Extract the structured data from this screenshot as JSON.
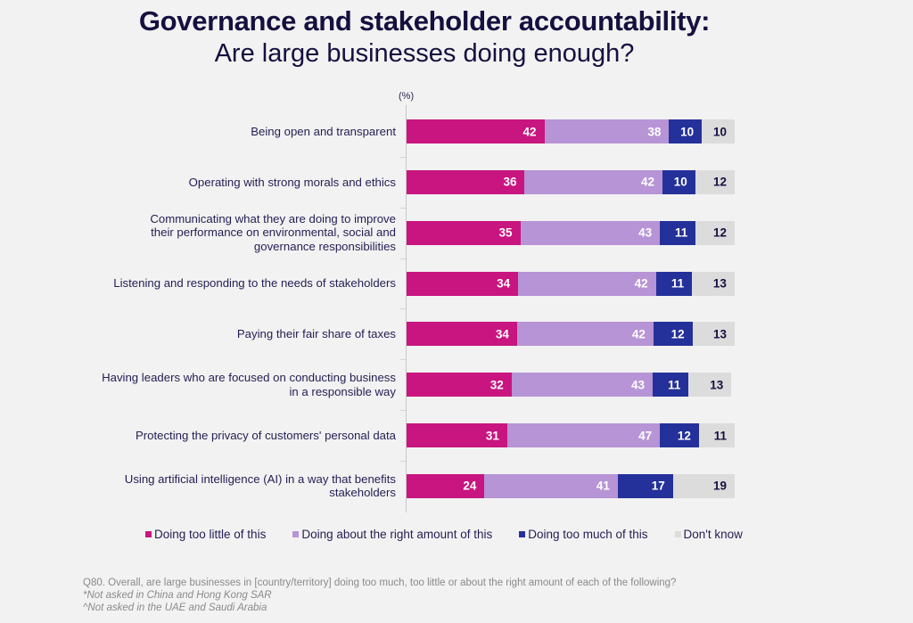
{
  "header": {
    "title": "Governance and stakeholder accountability:",
    "subtitle": "Are large businesses doing enough?"
  },
  "colors": {
    "too_little": "#c8157f",
    "right_amount": "#b794d6",
    "too_much": "#25319a",
    "dont_know": "#dcdcdc"
  },
  "chart_data": {
    "type": "bar",
    "orientation": "horizontal",
    "stacked": true,
    "title": "Governance and stakeholder accountability: Are large businesses doing enough?",
    "unit_label": "(%)",
    "xlim": [
      0,
      100
    ],
    "legend_position": "bottom",
    "categories": [
      "Being open and transparent",
      "Operating with strong morals and ethics",
      "Communicating what they are doing to improve their performance on environmental, social and governance responsibilities",
      "Listening and responding to the needs of stakeholders",
      "Paying their fair share of taxes",
      "Having leaders who are focused on conducting business in a responsible way",
      "Protecting the privacy of customers' personal data",
      "Using artificial intelligence (AI) in a way that benefits stakeholders"
    ],
    "series": [
      {
        "name": "Doing too little of this",
        "key": "too_little",
        "values": [
          42,
          36,
          35,
          34,
          34,
          32,
          31,
          24
        ]
      },
      {
        "name": "Doing about the right amount of this",
        "key": "right_amount",
        "values": [
          38,
          42,
          43,
          42,
          42,
          43,
          47,
          41
        ]
      },
      {
        "name": "Doing too much of this",
        "key": "too_much",
        "values": [
          10,
          10,
          11,
          11,
          12,
          11,
          12,
          17
        ]
      },
      {
        "name": "Don't know",
        "key": "dont_know",
        "values": [
          10,
          12,
          12,
          13,
          13,
          13,
          11,
          19
        ]
      }
    ]
  },
  "footnotes": {
    "question": "Q80. Overall, are large businesses in [country/territory] doing too much, too little or about the right amount of each of the following?",
    "note1": "*Not asked in China and Hong Kong SAR",
    "note2": "^Not asked in the UAE and Saudi Arabia"
  }
}
